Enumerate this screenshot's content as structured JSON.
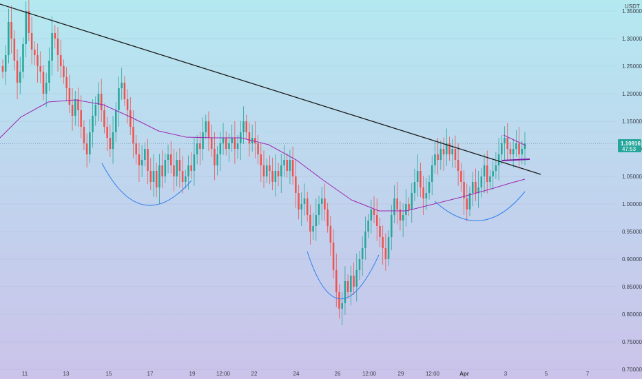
{
  "chart_data": {
    "type": "candlestick",
    "currency_label": "USDT",
    "y_ticks": [
      "1.35000",
      "1.30000",
      "1.25000",
      "1.20000",
      "1.15000",
      "1.10000",
      "1.05000",
      "1.00000",
      "0.95000",
      "0.90000",
      "0.85000",
      "0.80000",
      "0.75000",
      "0.70000"
    ],
    "x_ticks": [
      "11",
      "13",
      "15",
      "17",
      "19",
      "12:00",
      "22",
      "24",
      "26",
      "12:00",
      "29",
      "12:00",
      "Apr",
      "3",
      "5",
      "7"
    ],
    "ylim": [
      0.7,
      1.37
    ],
    "last_price": {
      "value": "1.10916",
      "countdown": "47:53"
    },
    "colors": {
      "up": "#26a69a",
      "down": "#ef5350",
      "trendline": "#1b1b1b",
      "moving_average": "#9c27b0",
      "pattern_arcs": "#2f80ed",
      "support_line": "#7b1fa2",
      "price_label_bg": "#26a69a"
    },
    "candles_close": [
      1.24,
      1.27,
      1.33,
      1.3,
      1.26,
      1.22,
      1.24,
      1.29,
      1.35,
      1.31,
      1.28,
      1.27,
      1.25,
      1.24,
      1.2,
      1.22,
      1.26,
      1.31,
      1.3,
      1.27,
      1.25,
      1.23,
      1.21,
      1.18,
      1.16,
      1.19,
      1.17,
      1.14,
      1.11,
      1.09,
      1.13,
      1.16,
      1.18,
      1.2,
      1.17,
      1.14,
      1.12,
      1.1,
      1.13,
      1.17,
      1.21,
      1.22,
      1.19,
      1.17,
      1.14,
      1.11,
      1.09,
      1.07,
      1.08,
      1.1,
      1.06,
      1.04,
      1.06,
      1.03,
      1.07,
      1.05,
      1.08,
      1.09,
      1.07,
      1.05,
      1.08,
      1.06,
      1.04,
      1.05,
      1.07,
      1.06,
      1.09,
      1.11,
      1.1,
      1.13,
      1.15,
      1.12,
      1.1,
      1.07,
      1.09,
      1.11,
      1.12,
      1.1,
      1.11,
      1.12,
      1.1,
      1.11,
      1.13,
      1.15,
      1.13,
      1.11,
      1.12,
      1.11,
      1.09,
      1.07,
      1.05,
      1.07,
      1.06,
      1.04,
      1.06,
      1.05,
      1.07,
      1.08,
      1.06,
      1.08,
      1.05,
      1.02,
      0.99,
      1.0,
      1.01,
      0.98,
      0.95,
      0.96,
      0.98,
      1.0,
      1.01,
      0.99,
      0.96,
      0.93,
      0.88,
      0.84,
      0.81,
      0.82,
      0.86,
      0.84,
      0.87,
      0.85,
      0.88,
      0.9,
      0.92,
      0.95,
      0.97,
      0.99,
      0.98,
      0.96,
      0.94,
      0.92,
      0.9,
      0.94,
      0.98,
      1.01,
      0.99,
      0.97,
      0.98,
      1.0,
      0.99,
      1.02,
      1.04,
      1.06,
      1.03,
      1.01,
      1.02,
      1.04,
      1.07,
      1.09,
      1.08,
      1.1,
      1.09,
      1.11,
      1.09,
      1.1,
      1.08,
      1.06,
      1.04,
      1.01,
      0.99,
      1.02,
      1.04,
      1.02,
      1.03,
      1.05,
      1.07,
      1.04,
      1.05,
      1.06,
      1.07,
      1.09,
      1.11,
      1.12,
      1.1,
      1.09,
      1.1,
      1.11,
      1.09,
      1.1,
      1.11
    ]
  }
}
